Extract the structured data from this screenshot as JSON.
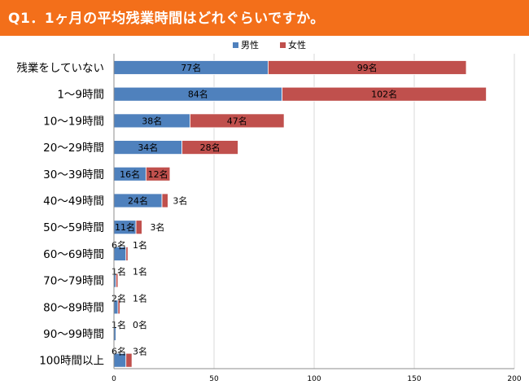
{
  "header": {
    "title": "Q1．1ヶ月の平均残業時間はどれぐらいですか。"
  },
  "chart_data": {
    "type": "bar",
    "orientation": "horizontal",
    "stacked": true,
    "title": "Q1．1ヶ月の平均残業時間はどれぐらいですか。",
    "categories": [
      "残業をしていない",
      "1～9時間",
      "10～19時間",
      "20～29時間",
      "30～39時間",
      "40～49時間",
      "50～59時間",
      "60～69時間",
      "70～79時間",
      "80～89時間",
      "90～99時間",
      "100時間以上"
    ],
    "series": [
      {
        "name": "男性",
        "color": "#4f81bd",
        "values": [
          77,
          84,
          38,
          34,
          16,
          24,
          11,
          6,
          1,
          2,
          1,
          6
        ],
        "labels": [
          "77名",
          "84名",
          "38名",
          "34名",
          "16名",
          "24名",
          "11名",
          "6名",
          "1名",
          "2名",
          "1名",
          "6名"
        ]
      },
      {
        "name": "女性",
        "color": "#c0504d",
        "values": [
          99,
          102,
          47,
          28,
          12,
          3,
          3,
          1,
          1,
          1,
          0,
          3
        ],
        "labels": [
          "99名",
          "102名",
          "47名",
          "28名",
          "12名",
          "3名",
          "3名",
          "1名",
          "1名",
          "1名",
          "0名",
          "3名"
        ]
      }
    ],
    "xlim": [
      0,
      200
    ],
    "xticks": [
      0,
      50,
      100,
      150,
      200
    ],
    "xtick_labels": [
      "0",
      "50",
      "100",
      "150",
      "200"
    ],
    "grid": true,
    "legend_position": "top"
  }
}
